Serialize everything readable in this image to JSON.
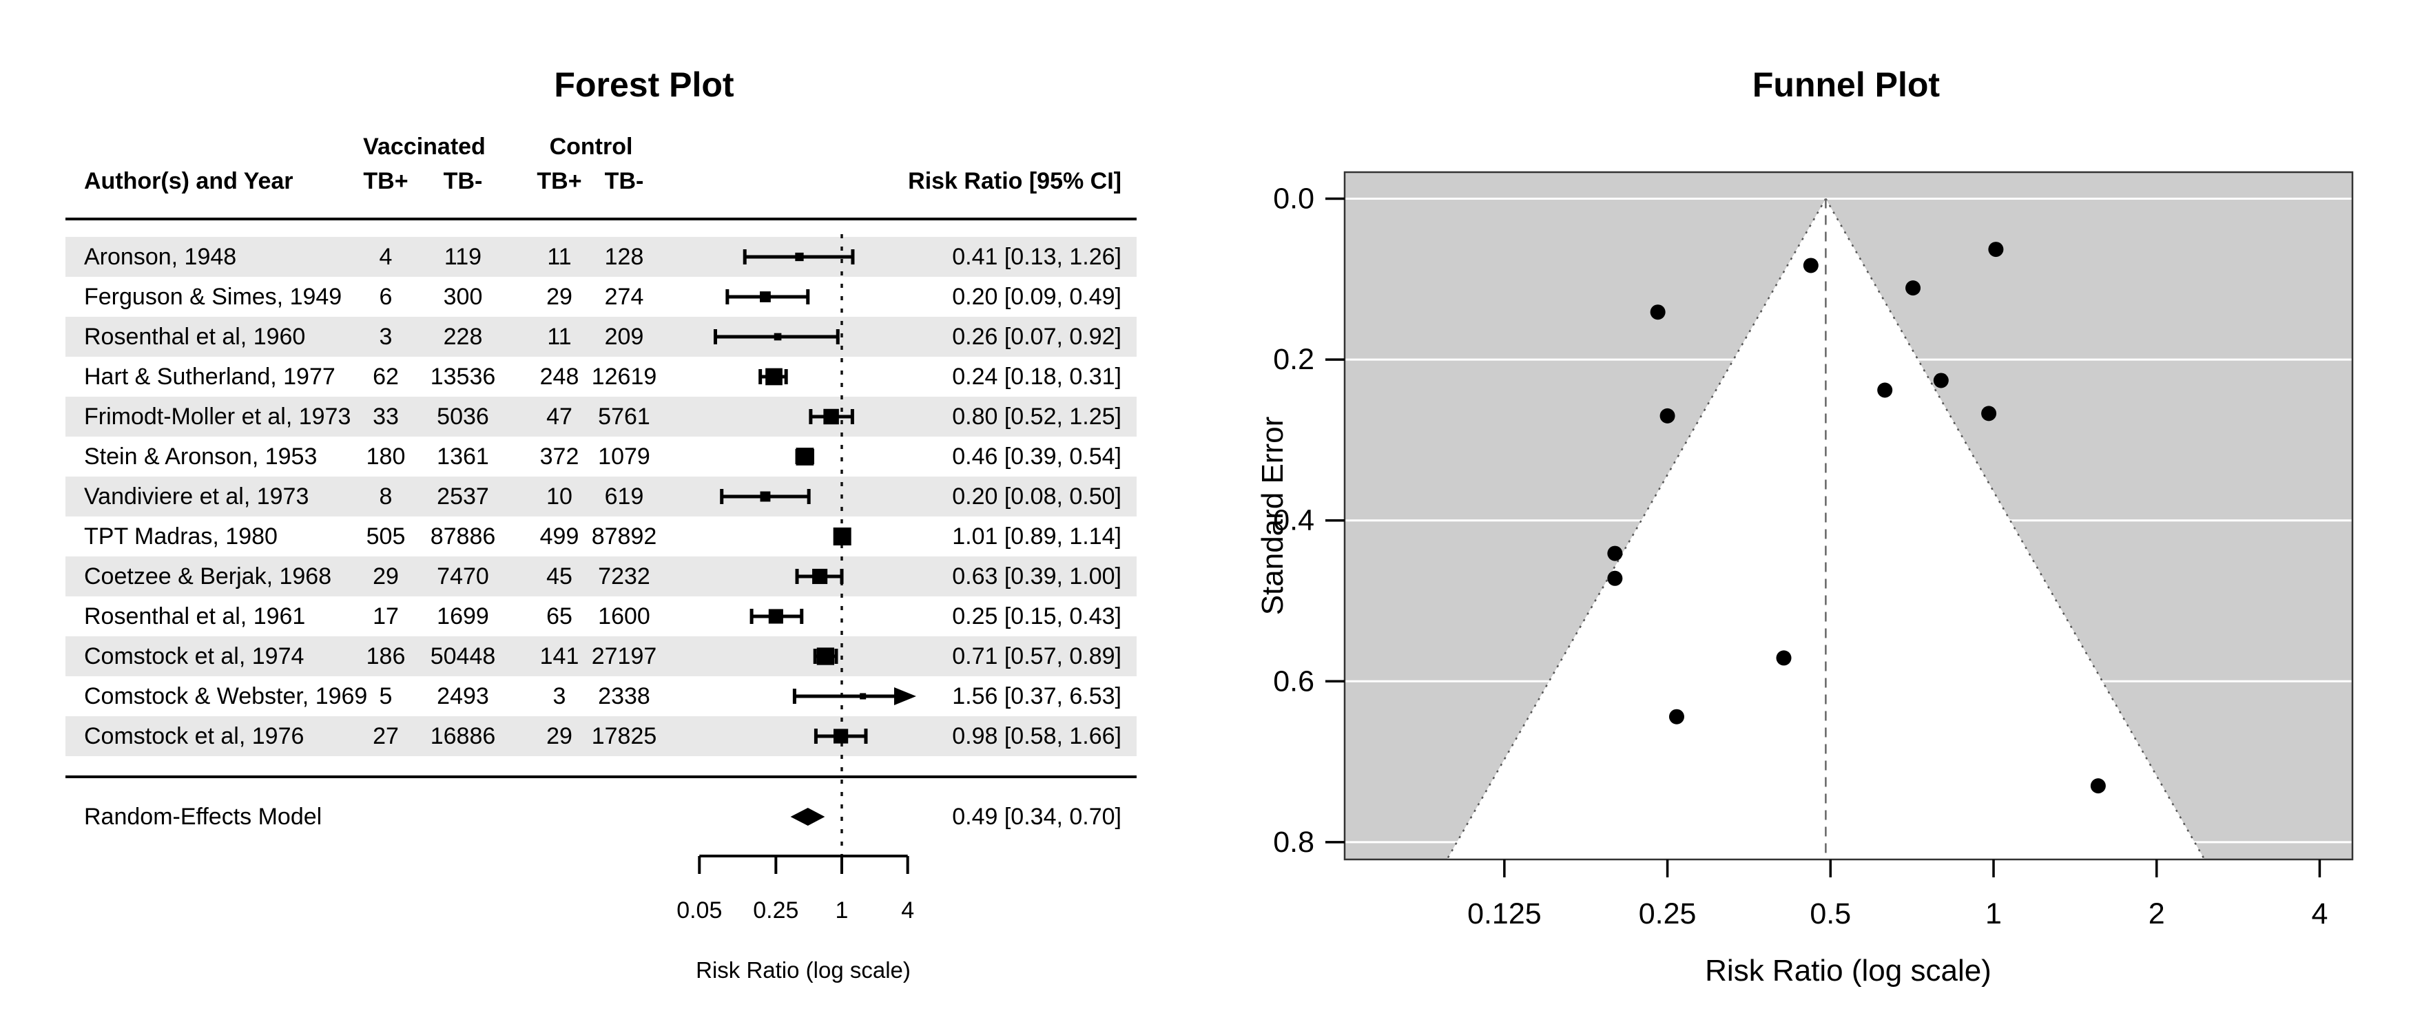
{
  "chart_data": [
    {
      "type": "forest",
      "title": "Forest Plot",
      "header": {
        "author": "Author(s) and Year",
        "group1": "Vaccinated",
        "group2": "Control",
        "sub": [
          "TB+",
          "TB-",
          "TB+",
          "TB-"
        ],
        "annotation": "Risk Ratio [95% CI]"
      },
      "rows": [
        {
          "author": "Aronson, 1948",
          "tpos": 4,
          "tneg": 119,
          "cpos": 11,
          "cneg": 128,
          "rr": 0.41,
          "lb": 0.13,
          "ub": 1.26,
          "se": 0.571,
          "label": "0.41 [0.13, 1.26]"
        },
        {
          "author": "Ferguson & Simes, 1949",
          "tpos": 6,
          "tneg": 300,
          "cpos": 29,
          "cneg": 274,
          "rr": 0.2,
          "lb": 0.09,
          "ub": 0.49,
          "se": 0.441,
          "label": "0.20 [0.09, 0.49]"
        },
        {
          "author": "Rosenthal et al, 1960",
          "tpos": 3,
          "tneg": 228,
          "cpos": 11,
          "cneg": 209,
          "rr": 0.26,
          "lb": 0.07,
          "ub": 0.92,
          "se": 0.644,
          "label": "0.26 [0.07, 0.92]"
        },
        {
          "author": "Hart & Sutherland, 1977",
          "tpos": 62,
          "tneg": 13536,
          "cpos": 248,
          "cneg": 12619,
          "rr": 0.24,
          "lb": 0.18,
          "ub": 0.31,
          "se": 0.141,
          "label": "0.24 [0.18, 0.31]"
        },
        {
          "author": "Frimodt-Moller et al, 1973",
          "tpos": 33,
          "tneg": 5036,
          "cpos": 47,
          "cneg": 5761,
          "rr": 0.8,
          "lb": 0.52,
          "ub": 1.25,
          "se": 0.226,
          "label": "0.80 [0.52, 1.25]"
        },
        {
          "author": "Stein & Aronson, 1953",
          "tpos": 180,
          "tneg": 1361,
          "cpos": 372,
          "cneg": 1079,
          "rr": 0.46,
          "lb": 0.39,
          "ub": 0.54,
          "se": 0.083,
          "label": "0.46 [0.39, 0.54]"
        },
        {
          "author": "Vandiviere et al, 1973",
          "tpos": 8,
          "tneg": 2537,
          "cpos": 10,
          "cneg": 619,
          "rr": 0.2,
          "lb": 0.08,
          "ub": 0.5,
          "se": 0.472,
          "label": "0.20 [0.08, 0.50]"
        },
        {
          "author": "TPT Madras, 1980",
          "tpos": 505,
          "tneg": 87886,
          "cpos": 499,
          "cneg": 87892,
          "rr": 1.01,
          "lb": 0.89,
          "ub": 1.14,
          "se": 0.063,
          "label": "1.01 [0.89, 1.14]"
        },
        {
          "author": "Coetzee & Berjak, 1968",
          "tpos": 29,
          "tneg": 7470,
          "cpos": 45,
          "cneg": 7232,
          "rr": 0.63,
          "lb": 0.39,
          "ub": 1.0,
          "se": 0.238,
          "label": "0.63 [0.39, 1.00]"
        },
        {
          "author": "Rosenthal et al, 1961",
          "tpos": 17,
          "tneg": 1699,
          "cpos": 65,
          "cneg": 1600,
          "rr": 0.25,
          "lb": 0.15,
          "ub": 0.43,
          "se": 0.27,
          "label": "0.25 [0.15, 0.43]"
        },
        {
          "author": "Comstock et al, 1974",
          "tpos": 186,
          "tneg": 50448,
          "cpos": 141,
          "cneg": 27197,
          "rr": 0.71,
          "lb": 0.57,
          "ub": 0.89,
          "se": 0.111,
          "label": "0.71 [0.57, 0.89]"
        },
        {
          "author": "Comstock & Webster, 1969",
          "tpos": 5,
          "tneg": 2493,
          "cpos": 3,
          "cneg": 2338,
          "rr": 1.56,
          "lb": 0.37,
          "ub": 6.53,
          "se": 0.73,
          "label": "1.56 [0.37, 6.53]"
        },
        {
          "author": "Comstock et al, 1976",
          "tpos": 27,
          "tneg": 16886,
          "cpos": 29,
          "cneg": 17825,
          "rr": 0.98,
          "lb": 0.58,
          "ub": 1.66,
          "se": 0.267,
          "label": "0.98 [0.58, 1.66]"
        }
      ],
      "summary": {
        "label": "Random-Effects Model",
        "rr": 0.49,
        "lb": 0.34,
        "ub": 0.7,
        "annotation": "0.49 [0.34, 0.70]"
      },
      "axis": {
        "scale": "log",
        "xlim": [
          0.05,
          4
        ],
        "ticks": [
          0.05,
          0.25,
          1,
          4
        ],
        "tick_labels": [
          "0.05",
          "0.25",
          "1",
          "4"
        ],
        "refline": 1,
        "xlabel": "Risk Ratio (log scale)"
      }
    },
    {
      "type": "funnel",
      "title": "Funnel Plot",
      "xlabel": "Risk Ratio (log scale)",
      "ylabel": "Standard Error",
      "x_scale": "log",
      "x_ticks": [
        0.125,
        0.25,
        0.5,
        1,
        2,
        4
      ],
      "x_tick_labels": [
        "0.125",
        "0.25",
        "0.5",
        "1",
        "2",
        "4"
      ],
      "y_ticks": [
        0.0,
        0.2,
        0.4,
        0.6,
        0.8
      ],
      "y_tick_labels": [
        "0.0",
        "0.2",
        "0.4",
        "0.6",
        "0.8"
      ],
      "ylim": [
        0,
        0.8
      ],
      "center": 0.49,
      "ci_level": 0.95,
      "points": [
        {
          "x": 0.41,
          "se": 0.571
        },
        {
          "x": 0.2,
          "se": 0.441
        },
        {
          "x": 0.26,
          "se": 0.644
        },
        {
          "x": 0.24,
          "se": 0.141
        },
        {
          "x": 0.8,
          "se": 0.226
        },
        {
          "x": 0.46,
          "se": 0.083
        },
        {
          "x": 0.2,
          "se": 0.472
        },
        {
          "x": 1.01,
          "se": 0.063
        },
        {
          "x": 0.63,
          "se": 0.238
        },
        {
          "x": 0.25,
          "se": 0.27
        },
        {
          "x": 0.71,
          "se": 0.111
        },
        {
          "x": 1.56,
          "se": 0.73
        },
        {
          "x": 0.98,
          "se": 0.267
        }
      ]
    }
  ],
  "colors": {
    "row_band": "#e8e8e8",
    "funnel_background": "#cdcdcd",
    "funnel_shade": "#ffffff",
    "gridline": "#ffffff",
    "marker": "#000000",
    "text": "#000000"
  }
}
